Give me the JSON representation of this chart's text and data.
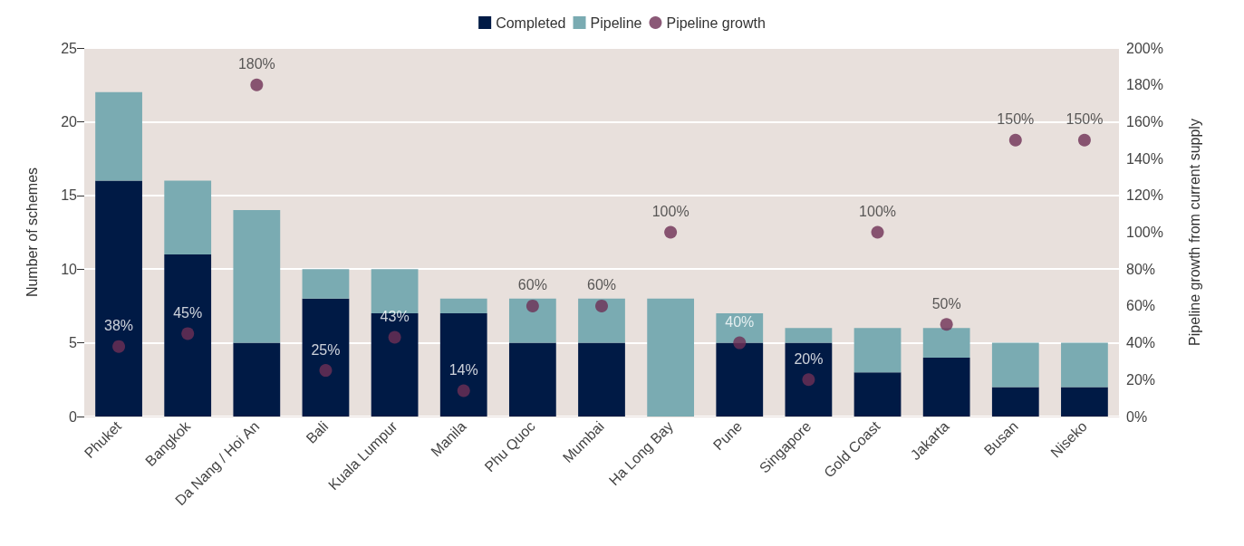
{
  "chart_data": {
    "type": "bar",
    "stacked": true,
    "ylabel": "Number of schemes",
    "y2label": "Pipeline growth from current supply",
    "categories": [
      "Phuket",
      "Bangkok",
      "Da Nang / Hoi An",
      "Bali",
      "Kuala Lumpur",
      "Manila",
      "Phu Quoc",
      "Mumbai",
      "Ha Long Bay",
      "Pune",
      "Singapore",
      "Gold Coast",
      "Jakarta",
      "Busan",
      "Niseko"
    ],
    "series": [
      {
        "name": "Completed",
        "color": "#001a45",
        "values": [
          16,
          11,
          5,
          8,
          7,
          7,
          5,
          5,
          0,
          5,
          5,
          3,
          4,
          2,
          2
        ]
      },
      {
        "name": "Pipeline",
        "color": "#7aabb2",
        "values": [
          6,
          5,
          9,
          2,
          3,
          1,
          3,
          3,
          8,
          2,
          1,
          3,
          2,
          3,
          3
        ]
      },
      {
        "name": "Pipeline growth",
        "type": "scatter",
        "axis": "y2",
        "color": "#6e2f55",
        "marker": "circle",
        "values": [
          38,
          45,
          180,
          25,
          43,
          14,
          60,
          60,
          100,
          40,
          20,
          100,
          50,
          150,
          150
        ],
        "value_labels": [
          "38%",
          "45%",
          "180%",
          "25%",
          "43%",
          "14%",
          "60%",
          "60%",
          "100%",
          "40%",
          "20%",
          "100%",
          "50%",
          "150%",
          "150%"
        ]
      }
    ],
    "ylim": [
      0,
      25
    ],
    "yticks": [
      0,
      5,
      10,
      15,
      20,
      25
    ],
    "y2lim": [
      0,
      200
    ],
    "y2ticks": [
      {
        "value": 0,
        "label": "0%"
      },
      {
        "value": 20,
        "label": "20%"
      },
      {
        "value": 40,
        "label": "40%"
      },
      {
        "value": 60,
        "label": "60%"
      },
      {
        "value": 80,
        "label": "80%"
      },
      {
        "value": 100,
        "label": "100%"
      },
      {
        "value": 120,
        "label": "120%"
      },
      {
        "value": 140,
        "label": "140%"
      },
      {
        "value": 160,
        "label": "160%"
      },
      {
        "value": 180,
        "label": "180%"
      },
      {
        "value": 200,
        "label": "200%"
      }
    ],
    "grid": "y",
    "legend": "top"
  }
}
